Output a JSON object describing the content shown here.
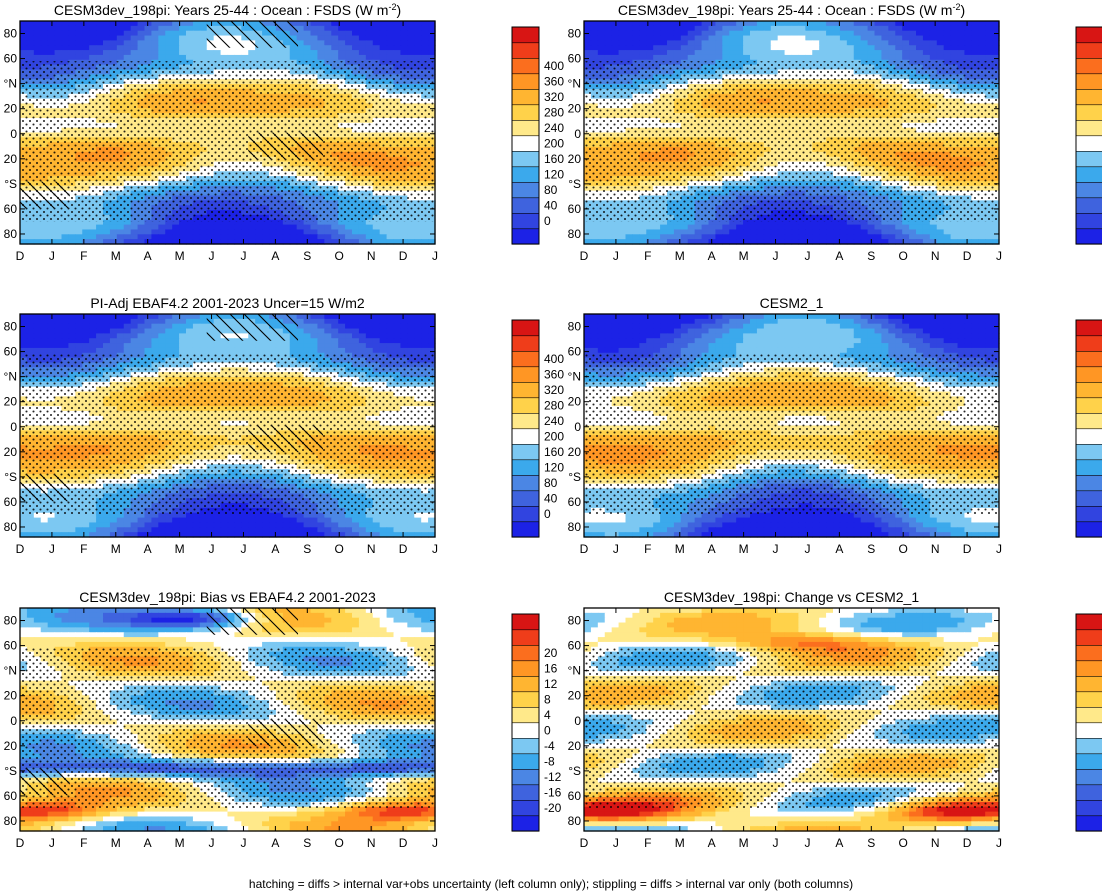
{
  "figure": {
    "caption": "hatching = diffs > internal var+obs uncertainty (left column only); stippling = diffs > internal var only (both columns)"
  },
  "colorscales": {
    "abs": {
      "labels": [
        "0",
        "40",
        "80",
        "120",
        "160",
        "200",
        "240",
        "280",
        "320",
        "360",
        "400"
      ],
      "colors": [
        "#1c22e6",
        "#3144e0",
        "#3f63de",
        "#4b86e4",
        "#3ba9ec",
        "#7cc8f2",
        "#ffffff",
        "#ffe98a",
        "#ffd24a",
        "#ffb531",
        "#ff9624",
        "#fb6e1e",
        "#ef3d1a",
        "#d81514"
      ]
    },
    "diff": {
      "labels": [
        "-20",
        "-16",
        "-12",
        "-8",
        "-4",
        "0",
        "4",
        "8",
        "12",
        "16",
        "20"
      ],
      "colors": [
        "#1c22e6",
        "#3144e0",
        "#3f63de",
        "#4b86e4",
        "#3ba9ec",
        "#7cc8f2",
        "#ffffff",
        "#ffe98a",
        "#ffd24a",
        "#ffb531",
        "#ff9624",
        "#fb6e1e",
        "#ef3d1a",
        "#d81514"
      ]
    }
  },
  "axes": {
    "months": [
      "D",
      "J",
      "F",
      "M",
      "A",
      "M",
      "J",
      "J",
      "A",
      "S",
      "O",
      "N",
      "D",
      "J"
    ],
    "lat_labels": [
      "80",
      "60",
      "°N",
      "20",
      "0",
      "20",
      "°S",
      "60",
      "80"
    ]
  },
  "chart_data": [
    {
      "type": "heatmap",
      "title_main": "CESM3dev_198pi: Years 25-44 : Ocean : FSDS (W m",
      "title_sup": "-2",
      "title_end": ")",
      "field": "insolation_model",
      "scale": "abs",
      "hatching": true,
      "xlabel": "",
      "ylabel": ""
    },
    {
      "type": "heatmap",
      "title_main": "CESM3dev_198pi: Years 25-44 : Ocean : FSDS (W m",
      "title_sup": "-2",
      "title_end": ")",
      "field": "insolation_model",
      "scale": "abs",
      "hatching": false,
      "xlabel": "",
      "ylabel": ""
    },
    {
      "type": "heatmap",
      "title_main": "PI-Adj EBAF4.2 2001-2023 Uncer=15 W/m2",
      "title_sup": "",
      "title_end": "",
      "field": "insolation_obs",
      "scale": "abs",
      "hatching": true,
      "xlabel": "",
      "ylabel": ""
    },
    {
      "type": "heatmap",
      "title_main": "CESM2_1",
      "title_sup": "",
      "title_end": "",
      "field": "insolation_cesm2",
      "scale": "abs",
      "hatching": false,
      "xlabel": "",
      "ylabel": ""
    },
    {
      "type": "heatmap",
      "title_main": "CESM3dev_198pi: Bias vs EBAF4.2 2001-2023",
      "title_sup": "",
      "title_end": "",
      "field": "bias",
      "scale": "diff",
      "hatching": true,
      "xlabel": "",
      "ylabel": ""
    },
    {
      "type": "heatmap",
      "title_main": "CESM3dev_198pi: Change vs CESM2_1",
      "title_sup": "",
      "title_end": "",
      "field": "change",
      "scale": "diff",
      "hatching": false,
      "xlabel": "",
      "ylabel": ""
    }
  ]
}
